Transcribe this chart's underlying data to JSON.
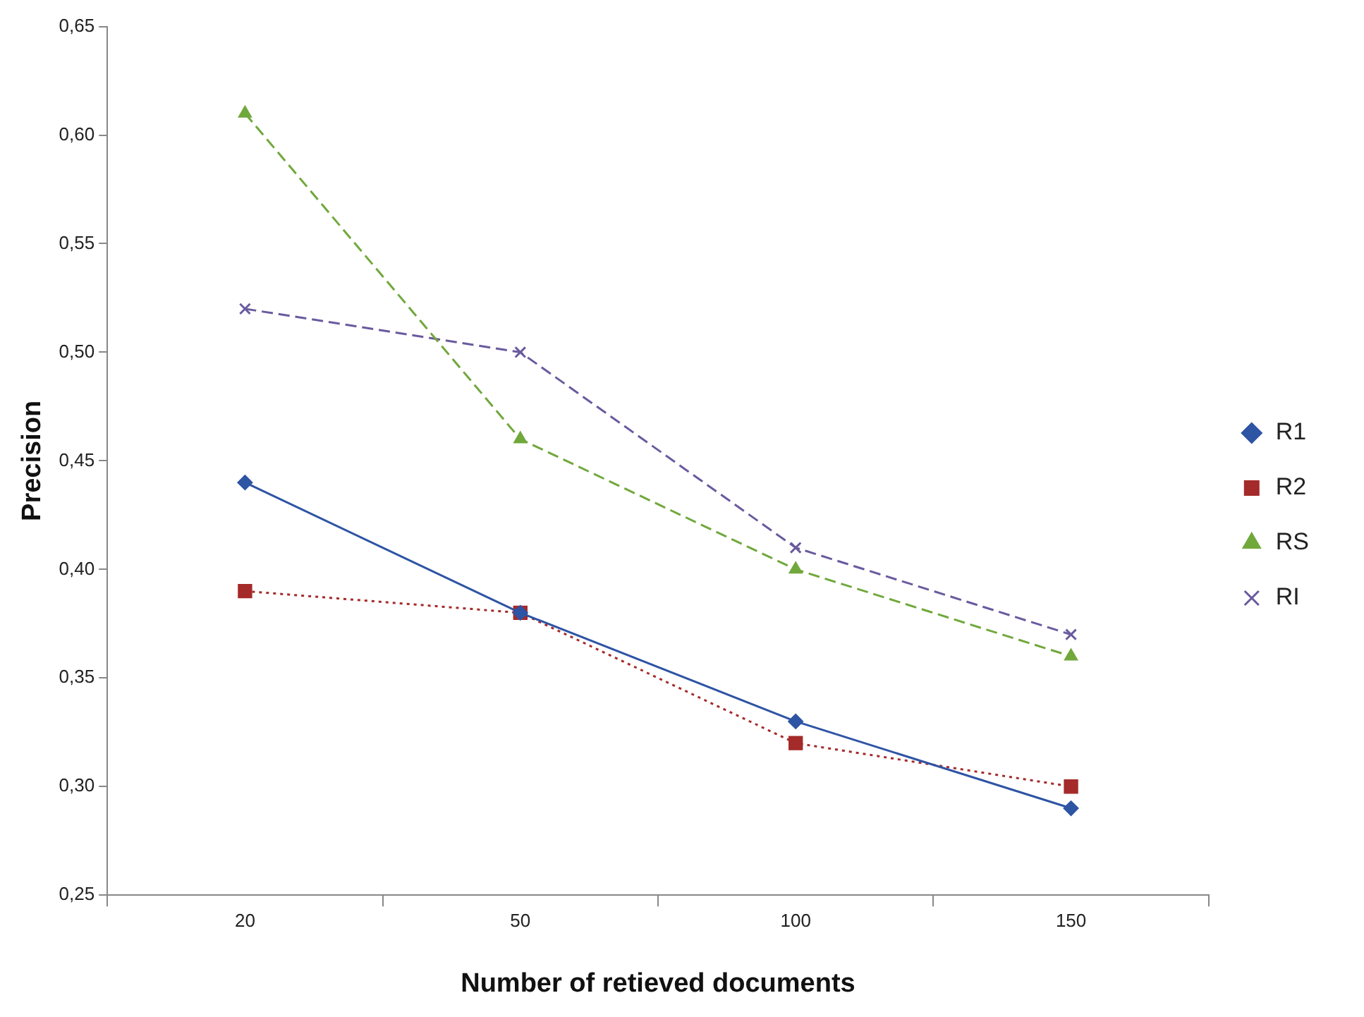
{
  "chart_data": {
    "type": "line",
    "xlabel": "Number of retieved documents",
    "ylabel": "Precision",
    "categories": [
      "20",
      "50",
      "100",
      "150"
    ],
    "series": [
      {
        "name": "R1",
        "color": "#2e54a4",
        "values": [
          0.44,
          0.38,
          0.33,
          0.29
        ],
        "marker": "diamond",
        "line_style": "solid"
      },
      {
        "name": "R2",
        "color": "#a52a2a",
        "values": [
          0.39,
          0.38,
          0.32,
          0.3
        ],
        "marker": "square",
        "line_style": "dotted"
      },
      {
        "name": "RS",
        "color": "#71a83c",
        "values": [
          0.61,
          0.46,
          0.4,
          0.36
        ],
        "marker": "triangle",
        "line_style": "dashed"
      },
      {
        "name": "RI",
        "color": "#6a5a9e",
        "values": [
          0.52,
          0.5,
          0.41,
          0.37
        ],
        "marker": "cross",
        "line_style": "dashed"
      }
    ],
    "ylim": [
      0.25,
      0.65
    ],
    "yticks": [
      {
        "value": 0.25,
        "label": "0,25"
      },
      {
        "value": 0.3,
        "label": "0,30"
      },
      {
        "value": 0.35,
        "label": "0,35"
      },
      {
        "value": 0.4,
        "label": "0,40"
      },
      {
        "value": 0.45,
        "label": "0,45"
      },
      {
        "value": 0.5,
        "label": "0,50"
      },
      {
        "value": 0.55,
        "label": "0,55"
      },
      {
        "value": 0.6,
        "label": "0,60"
      },
      {
        "value": 0.65,
        "label": "0,65"
      }
    ],
    "grid": false,
    "legend": "right"
  }
}
